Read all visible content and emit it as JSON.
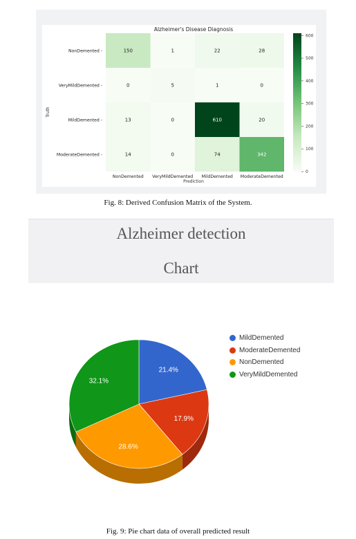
{
  "confusion": {
    "title": "Alzheimer's Disease Diagnosis",
    "ylabel": "Truth",
    "xlabel": "Prediction",
    "labels": [
      "NonDemented",
      "VeryMildDemented",
      "MildDemented",
      "ModerateDemented"
    ],
    "matrix": [
      [
        150,
        1,
        22,
        28
      ],
      [
        0,
        5,
        1,
        0
      ],
      [
        13,
        0,
        610,
        20
      ],
      [
        14,
        0,
        74,
        342
      ]
    ],
    "vmax": 610,
    "colorbar_ticks": [
      600,
      500,
      400,
      300,
      200,
      100,
      0
    ],
    "colorbar_tick_labels": [
      "600",
      "500",
      "400",
      "300",
      "200",
      "100",
      "0"
    ]
  },
  "caption_fig8": "Fig. 8: Derived Confusion Matrix of the System.",
  "banner": {
    "line1": "Alzheimer detection",
    "line2": "Chart"
  },
  "chart_data": [
    {
      "type": "heatmap",
      "title": "Alzheimer's Disease Diagnosis",
      "xlabel": "Prediction",
      "ylabel": "Truth",
      "x_categories": [
        "NonDemented",
        "VeryMildDemented",
        "MildDemented",
        "ModerateDemented"
      ],
      "y_categories": [
        "NonDemented",
        "VeryMildDemented",
        "MildDemented",
        "ModerateDemented"
      ],
      "values": [
        [
          150,
          1,
          22,
          28
        ],
        [
          0,
          5,
          1,
          0
        ],
        [
          13,
          0,
          610,
          20
        ],
        [
          14,
          0,
          74,
          342
        ]
      ],
      "colorbar_range": [
        0,
        610
      ],
      "colormap": "Greens"
    },
    {
      "type": "pie",
      "labels": [
        "MildDemented",
        "ModerateDemented",
        "NonDemented",
        "VeryMildDemented"
      ],
      "values": [
        21.4,
        17.9,
        28.6,
        32.1
      ],
      "value_labels": [
        "21.4%",
        "17.9%",
        "28.6%",
        "32.1%"
      ],
      "colors": [
        "#3366cc",
        "#dc3912",
        "#ff9900",
        "#109618"
      ],
      "legend_position": "right"
    }
  ],
  "caption_fig9": "Fig. 9: Pie chart data of overall predicted result"
}
